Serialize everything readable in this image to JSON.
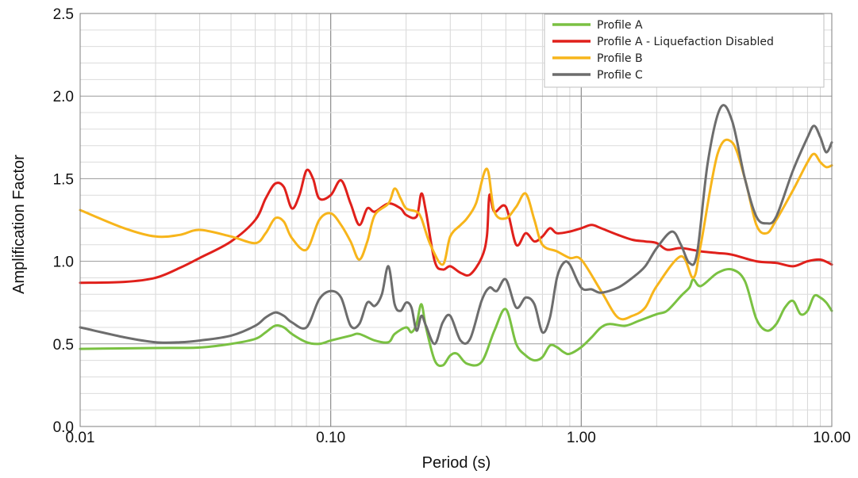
{
  "chart_data": {
    "type": "line",
    "title": "",
    "xlabel": "Period (s)",
    "ylabel": "Amplification Factor",
    "x_scale": "log",
    "xlim": [
      0.01,
      10
    ],
    "ylim": [
      0,
      2.5
    ],
    "x_ticks": [
      {
        "value": 0.01,
        "label": "0.01"
      },
      {
        "value": 0.1,
        "label": "0.10"
      },
      {
        "value": 1,
        "label": "1.00"
      },
      {
        "value": 10,
        "label": "10.00"
      }
    ],
    "y_ticks": [
      {
        "value": 0,
        "label": "0.0"
      },
      {
        "value": 0.5,
        "label": "0.5"
      },
      {
        "value": 1,
        "label": "1.0"
      },
      {
        "value": 1.5,
        "label": "1.5"
      },
      {
        "value": 2,
        "label": "2.0"
      },
      {
        "value": 2.5,
        "label": "2.5"
      }
    ],
    "grid": true,
    "legend_position": "top-right",
    "series": [
      {
        "name": "Profile A",
        "color": "#7ac142",
        "points": [
          [
            0.01,
            0.47
          ],
          [
            0.02,
            0.475
          ],
          [
            0.03,
            0.478
          ],
          [
            0.04,
            0.5
          ],
          [
            0.05,
            0.53
          ],
          [
            0.055,
            0.57
          ],
          [
            0.06,
            0.61
          ],
          [
            0.065,
            0.6
          ],
          [
            0.07,
            0.56
          ],
          [
            0.08,
            0.51
          ],
          [
            0.09,
            0.5
          ],
          [
            0.1,
            0.52
          ],
          [
            0.12,
            0.55
          ],
          [
            0.13,
            0.56
          ],
          [
            0.15,
            0.52
          ],
          [
            0.17,
            0.51
          ],
          [
            0.18,
            0.56
          ],
          [
            0.2,
            0.6
          ],
          [
            0.21,
            0.57
          ],
          [
            0.22,
            0.62
          ],
          [
            0.23,
            0.74
          ],
          [
            0.24,
            0.6
          ],
          [
            0.26,
            0.4
          ],
          [
            0.28,
            0.37
          ],
          [
            0.3,
            0.43
          ],
          [
            0.32,
            0.44
          ],
          [
            0.35,
            0.38
          ],
          [
            0.4,
            0.39
          ],
          [
            0.45,
            0.58
          ],
          [
            0.5,
            0.71
          ],
          [
            0.55,
            0.5
          ],
          [
            0.6,
            0.43
          ],
          [
            0.65,
            0.4
          ],
          [
            0.7,
            0.42
          ],
          [
            0.75,
            0.49
          ],
          [
            0.8,
            0.48
          ],
          [
            0.85,
            0.45
          ],
          [
            0.9,
            0.44
          ],
          [
            1.0,
            0.48
          ],
          [
            1.1,
            0.54
          ],
          [
            1.2,
            0.6
          ],
          [
            1.3,
            0.62
          ],
          [
            1.5,
            0.61
          ],
          [
            1.7,
            0.64
          ],
          [
            2.0,
            0.68
          ],
          [
            2.2,
            0.7
          ],
          [
            2.5,
            0.79
          ],
          [
            2.7,
            0.84
          ],
          [
            2.8,
            0.89
          ],
          [
            3.0,
            0.85
          ],
          [
            3.5,
            0.93
          ],
          [
            4.0,
            0.95
          ],
          [
            4.5,
            0.88
          ],
          [
            5.0,
            0.65
          ],
          [
            5.5,
            0.58
          ],
          [
            6.0,
            0.62
          ],
          [
            6.5,
            0.72
          ],
          [
            7.0,
            0.76
          ],
          [
            7.5,
            0.68
          ],
          [
            8.0,
            0.7
          ],
          [
            8.5,
            0.79
          ],
          [
            9.0,
            0.78
          ],
          [
            9.5,
            0.75
          ],
          [
            10.0,
            0.7
          ]
        ]
      },
      {
        "name": "Profile A - Liquefaction Disabled",
        "color": "#e0201b",
        "points": [
          [
            0.01,
            0.87
          ],
          [
            0.015,
            0.875
          ],
          [
            0.02,
            0.9
          ],
          [
            0.025,
            0.96
          ],
          [
            0.03,
            1.02
          ],
          [
            0.04,
            1.12
          ],
          [
            0.05,
            1.25
          ],
          [
            0.055,
            1.38
          ],
          [
            0.06,
            1.47
          ],
          [
            0.065,
            1.45
          ],
          [
            0.07,
            1.32
          ],
          [
            0.075,
            1.4
          ],
          [
            0.08,
            1.55
          ],
          [
            0.085,
            1.5
          ],
          [
            0.09,
            1.38
          ],
          [
            0.1,
            1.4
          ],
          [
            0.11,
            1.49
          ],
          [
            0.12,
            1.35
          ],
          [
            0.13,
            1.22
          ],
          [
            0.14,
            1.32
          ],
          [
            0.15,
            1.3
          ],
          [
            0.17,
            1.35
          ],
          [
            0.19,
            1.32
          ],
          [
            0.2,
            1.28
          ],
          [
            0.22,
            1.27
          ],
          [
            0.23,
            1.41
          ],
          [
            0.24,
            1.3
          ],
          [
            0.26,
            1.0
          ],
          [
            0.28,
            0.95
          ],
          [
            0.3,
            0.97
          ],
          [
            0.33,
            0.93
          ],
          [
            0.36,
            0.92
          ],
          [
            0.4,
            1.02
          ],
          [
            0.42,
            1.15
          ],
          [
            0.43,
            1.4
          ],
          [
            0.45,
            1.3
          ],
          [
            0.5,
            1.33
          ],
          [
            0.55,
            1.1
          ],
          [
            0.6,
            1.17
          ],
          [
            0.65,
            1.12
          ],
          [
            0.7,
            1.15
          ],
          [
            0.75,
            1.2
          ],
          [
            0.8,
            1.17
          ],
          [
            0.9,
            1.18
          ],
          [
            1.0,
            1.2
          ],
          [
            1.1,
            1.22
          ],
          [
            1.2,
            1.2
          ],
          [
            1.4,
            1.16
          ],
          [
            1.6,
            1.13
          ],
          [
            1.8,
            1.12
          ],
          [
            2.0,
            1.11
          ],
          [
            2.2,
            1.07
          ],
          [
            2.5,
            1.08
          ],
          [
            3.0,
            1.06
          ],
          [
            3.5,
            1.05
          ],
          [
            4.0,
            1.04
          ],
          [
            5.0,
            1.0
          ],
          [
            6.0,
            0.99
          ],
          [
            7.0,
            0.97
          ],
          [
            8.0,
            1.0
          ],
          [
            9.0,
            1.01
          ],
          [
            10.0,
            0.98
          ]
        ]
      },
      {
        "name": "Profile B",
        "color": "#f7b51b",
        "points": [
          [
            0.01,
            1.31
          ],
          [
            0.015,
            1.2
          ],
          [
            0.02,
            1.15
          ],
          [
            0.025,
            1.16
          ],
          [
            0.03,
            1.19
          ],
          [
            0.04,
            1.15
          ],
          [
            0.05,
            1.11
          ],
          [
            0.055,
            1.17
          ],
          [
            0.06,
            1.26
          ],
          [
            0.065,
            1.24
          ],
          [
            0.07,
            1.14
          ],
          [
            0.08,
            1.07
          ],
          [
            0.09,
            1.25
          ],
          [
            0.1,
            1.29
          ],
          [
            0.11,
            1.22
          ],
          [
            0.12,
            1.12
          ],
          [
            0.13,
            1.01
          ],
          [
            0.14,
            1.12
          ],
          [
            0.15,
            1.28
          ],
          [
            0.17,
            1.35
          ],
          [
            0.18,
            1.44
          ],
          [
            0.19,
            1.38
          ],
          [
            0.2,
            1.32
          ],
          [
            0.22,
            1.3
          ],
          [
            0.23,
            1.26
          ],
          [
            0.25,
            1.1
          ],
          [
            0.28,
            0.98
          ],
          [
            0.3,
            1.15
          ],
          [
            0.33,
            1.22
          ],
          [
            0.35,
            1.26
          ],
          [
            0.38,
            1.35
          ],
          [
            0.42,
            1.56
          ],
          [
            0.45,
            1.3
          ],
          [
            0.5,
            1.26
          ],
          [
            0.55,
            1.33
          ],
          [
            0.6,
            1.41
          ],
          [
            0.65,
            1.25
          ],
          [
            0.7,
            1.1
          ],
          [
            0.8,
            1.06
          ],
          [
            0.9,
            1.02
          ],
          [
            1.0,
            1.01
          ],
          [
            1.2,
            0.82
          ],
          [
            1.4,
            0.66
          ],
          [
            1.6,
            0.67
          ],
          [
            1.8,
            0.72
          ],
          [
            2.0,
            0.85
          ],
          [
            2.5,
            1.03
          ],
          [
            2.8,
            0.9
          ],
          [
            3.0,
            1.1
          ],
          [
            3.5,
            1.65
          ],
          [
            4.0,
            1.72
          ],
          [
            4.5,
            1.5
          ],
          [
            5.0,
            1.22
          ],
          [
            5.5,
            1.17
          ],
          [
            6.0,
            1.25
          ],
          [
            7.0,
            1.43
          ],
          [
            8.0,
            1.6
          ],
          [
            8.5,
            1.65
          ],
          [
            9.0,
            1.6
          ],
          [
            9.5,
            1.57
          ],
          [
            10.0,
            1.58
          ]
        ]
      },
      {
        "name": "Profile C",
        "color": "#6d6d6d",
        "points": [
          [
            0.01,
            0.6
          ],
          [
            0.015,
            0.54
          ],
          [
            0.02,
            0.51
          ],
          [
            0.025,
            0.51
          ],
          [
            0.03,
            0.52
          ],
          [
            0.04,
            0.55
          ],
          [
            0.05,
            0.61
          ],
          [
            0.055,
            0.66
          ],
          [
            0.06,
            0.69
          ],
          [
            0.065,
            0.67
          ],
          [
            0.07,
            0.63
          ],
          [
            0.08,
            0.6
          ],
          [
            0.09,
            0.77
          ],
          [
            0.1,
            0.82
          ],
          [
            0.11,
            0.78
          ],
          [
            0.12,
            0.61
          ],
          [
            0.13,
            0.62
          ],
          [
            0.14,
            0.75
          ],
          [
            0.15,
            0.73
          ],
          [
            0.16,
            0.8
          ],
          [
            0.17,
            0.97
          ],
          [
            0.18,
            0.74
          ],
          [
            0.19,
            0.7
          ],
          [
            0.2,
            0.75
          ],
          [
            0.21,
            0.72
          ],
          [
            0.22,
            0.58
          ],
          [
            0.23,
            0.67
          ],
          [
            0.24,
            0.61
          ],
          [
            0.26,
            0.5
          ],
          [
            0.28,
            0.63
          ],
          [
            0.3,
            0.67
          ],
          [
            0.33,
            0.52
          ],
          [
            0.36,
            0.53
          ],
          [
            0.4,
            0.76
          ],
          [
            0.43,
            0.84
          ],
          [
            0.46,
            0.82
          ],
          [
            0.5,
            0.89
          ],
          [
            0.55,
            0.72
          ],
          [
            0.6,
            0.78
          ],
          [
            0.65,
            0.74
          ],
          [
            0.7,
            0.57
          ],
          [
            0.75,
            0.66
          ],
          [
            0.8,
            0.9
          ],
          [
            0.85,
            0.99
          ],
          [
            0.9,
            0.98
          ],
          [
            1.0,
            0.84
          ],
          [
            1.1,
            0.83
          ],
          [
            1.2,
            0.81
          ],
          [
            1.4,
            0.84
          ],
          [
            1.6,
            0.9
          ],
          [
            1.8,
            0.97
          ],
          [
            2.0,
            1.08
          ],
          [
            2.3,
            1.18
          ],
          [
            2.5,
            1.1
          ],
          [
            2.7,
            0.99
          ],
          [
            2.9,
            1.05
          ],
          [
            3.2,
            1.6
          ],
          [
            3.6,
            1.93
          ],
          [
            4.0,
            1.85
          ],
          [
            4.5,
            1.5
          ],
          [
            5.0,
            1.27
          ],
          [
            5.5,
            1.23
          ],
          [
            6.0,
            1.27
          ],
          [
            7.0,
            1.55
          ],
          [
            8.0,
            1.75
          ],
          [
            8.5,
            1.82
          ],
          [
            9.0,
            1.75
          ],
          [
            9.5,
            1.66
          ],
          [
            10.0,
            1.72
          ]
        ]
      }
    ]
  }
}
